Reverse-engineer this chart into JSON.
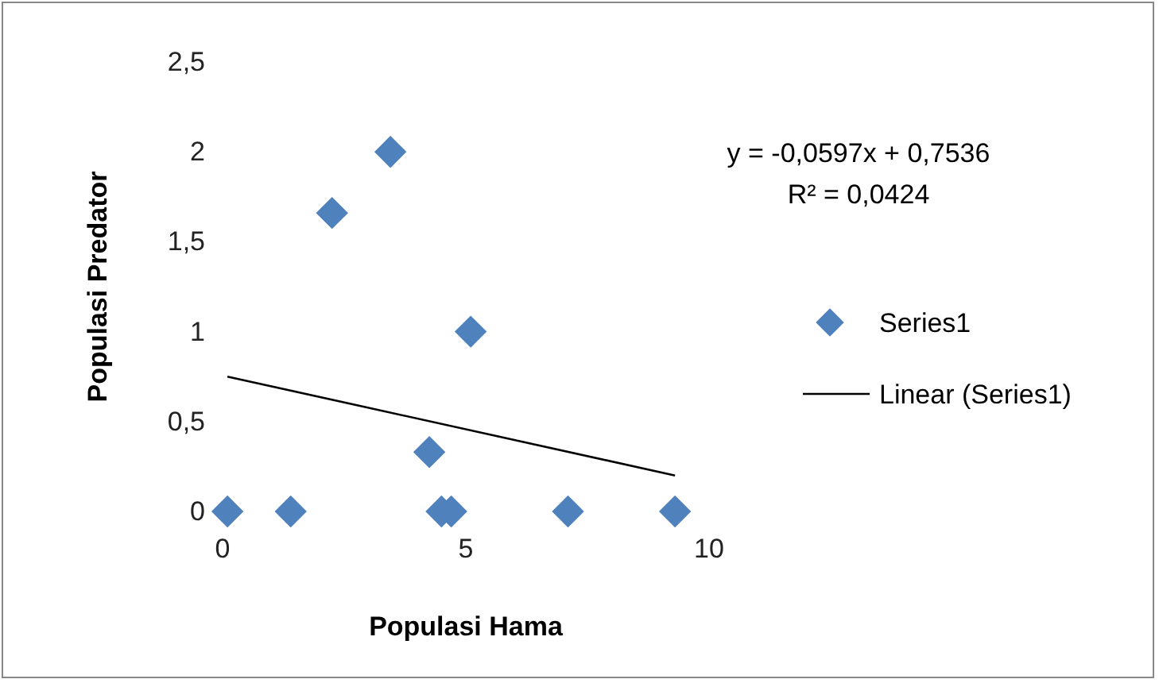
{
  "chart_data": {
    "type": "scatter",
    "xlabel": "Populasi Hama",
    "ylabel": "Populasi Predator",
    "xlim": [
      0,
      10
    ],
    "xticks": [
      0,
      5,
      10
    ],
    "ylim": [
      0,
      2.5
    ],
    "yticks": [
      0,
      {
        "value": 0.5,
        "label": "0,5"
      },
      1,
      {
        "value": 1.5,
        "label": "1,5"
      },
      2,
      {
        "value": 2.5,
        "label": "2,5"
      }
    ],
    "series": [
      {
        "name": "Series1",
        "marker": "diamond",
        "color": "#4f81bd",
        "x": [
          0.1,
          1.4,
          2.25,
          3.45,
          4.25,
          4.5,
          4.7,
          5.1,
          7.1,
          9.3
        ],
        "values": [
          0,
          0,
          1.66,
          2.0,
          0.33,
          0,
          0,
          1.0,
          0,
          0
        ]
      },
      {
        "name": "Linear (Series1)",
        "type": "line",
        "marker": "none",
        "line_style": "solid",
        "color": "#000000",
        "x": [
          0.1,
          9.3
        ],
        "values": [
          0.75,
          0.2
        ]
      }
    ],
    "annotations": [
      "y = -0,0597x + 0,7536",
      "R² = 0,0424"
    ],
    "legend": "right",
    "grid": false
  }
}
